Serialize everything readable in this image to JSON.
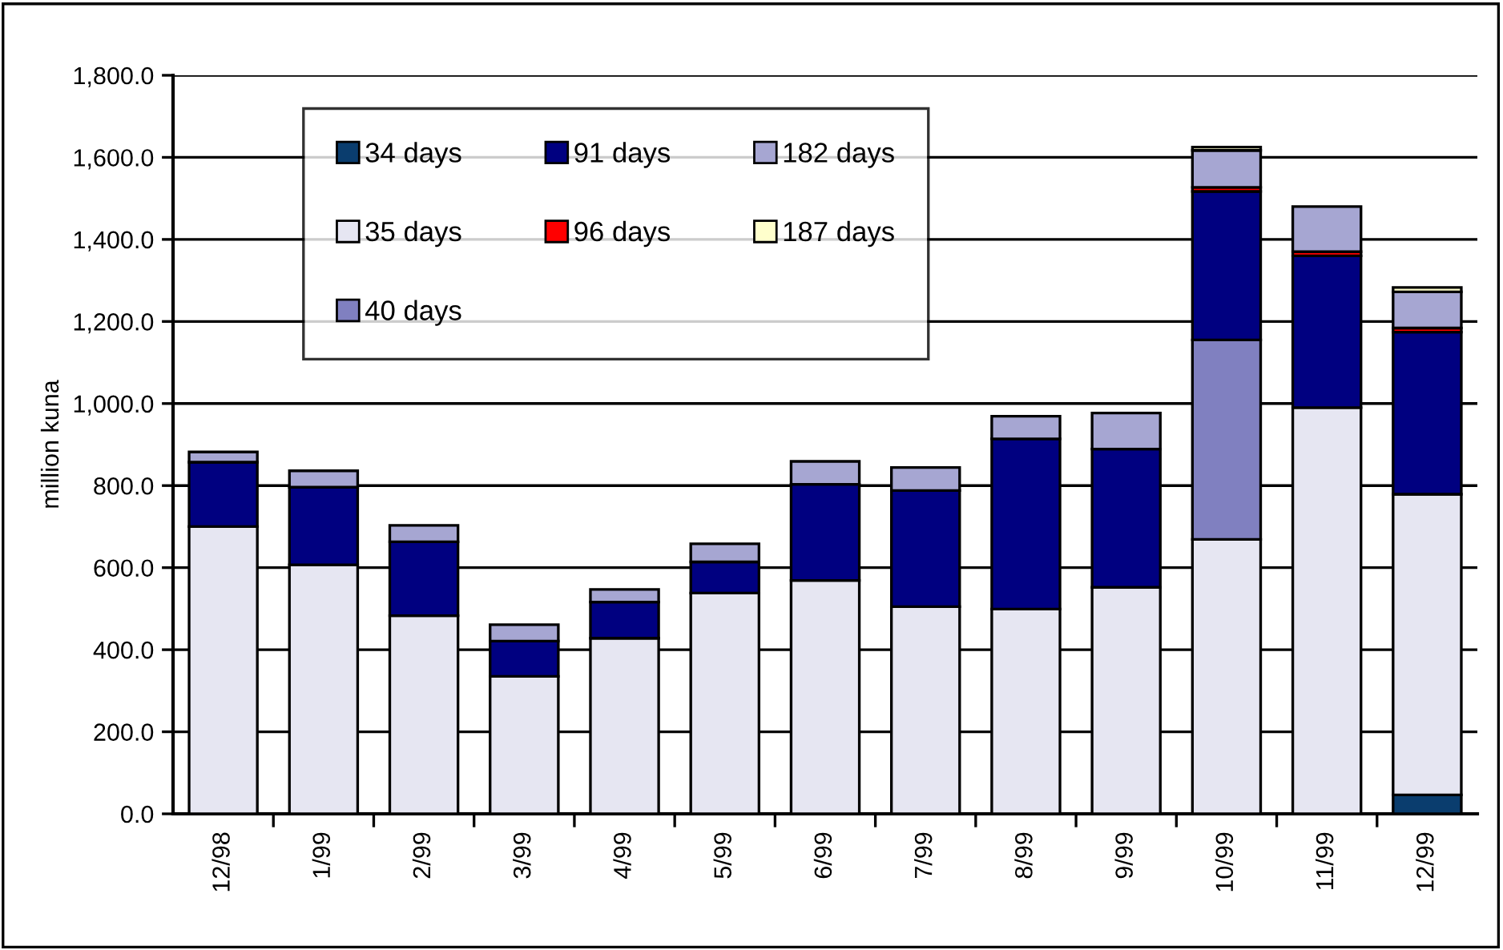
{
  "chart_data": {
    "type": "bar",
    "stacked": true,
    "ylabel": "million kuna",
    "categories": [
      "12/98",
      "1/99",
      "2/99",
      "3/99",
      "4/99",
      "5/99",
      "6/99",
      "7/99",
      "8/99",
      "9/99",
      "10/99",
      "11/99",
      "12/99"
    ],
    "series": [
      {
        "name": "34 days",
        "color": "#0a3d6e",
        "values": [
          null,
          null,
          null,
          null,
          null,
          null,
          null,
          null,
          null,
          null,
          null,
          null,
          46
        ]
      },
      {
        "name": "35 days",
        "color": "#e6e6f2",
        "values": [
          700,
          607,
          483,
          335,
          428,
          538,
          569,
          505,
          499,
          552,
          669,
          990,
          733
        ]
      },
      {
        "name": "40 days",
        "color": "#8080c0",
        "values": [
          null,
          null,
          null,
          null,
          null,
          null,
          null,
          null,
          null,
          null,
          486,
          null,
          null
        ]
      },
      {
        "name": "91 days",
        "color": "#000080",
        "values": [
          157,
          189,
          180,
          86,
          88,
          76,
          234,
          283,
          415,
          337,
          362,
          370,
          395
        ]
      },
      {
        "name": "96 days",
        "color": "#ff0000",
        "values": [
          null,
          null,
          null,
          null,
          null,
          null,
          null,
          null,
          null,
          null,
          10,
          10,
          10
        ]
      },
      {
        "name": "182 days",
        "color": "#a6a6d2",
        "values": [
          25,
          40,
          40,
          40,
          31,
          44,
          56,
          56,
          55,
          88,
          90,
          110,
          88
        ]
      },
      {
        "name": "187 days",
        "color": "#ffffcc",
        "values": [
          null,
          null,
          null,
          null,
          null,
          null,
          null,
          null,
          null,
          null,
          8,
          null,
          11
        ]
      }
    ],
    "ylim": [
      0,
      1800
    ],
    "yticks": [
      {
        "value": 0,
        "label": "0.0"
      },
      {
        "value": 200,
        "label": "200.0"
      },
      {
        "value": 400,
        "label": "400.0"
      },
      {
        "value": 600,
        "label": "600.0"
      },
      {
        "value": 800,
        "label": "800.0"
      },
      {
        "value": 1000,
        "label": "1,000.0"
      },
      {
        "value": 1200,
        "label": "1,200.0"
      },
      {
        "value": 1400,
        "label": "1,400.0"
      },
      {
        "value": 1600,
        "label": "1,600.0"
      },
      {
        "value": 1800,
        "label": "1,800.0"
      }
    ],
    "grid": "y",
    "legend": "top left"
  }
}
